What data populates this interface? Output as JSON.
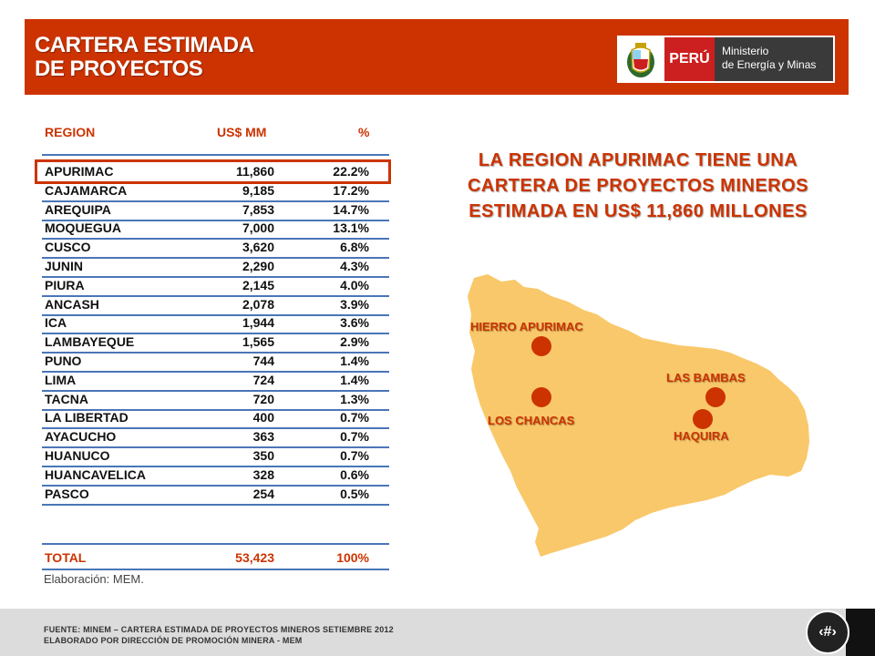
{
  "header": {
    "title_line1": "CARTERA ESTIMADA",
    "title_line2": "DE PROYECTOS",
    "logo": {
      "country": "PERÚ",
      "ministry_line1": "Ministerio",
      "ministry_line2": "de Energía y Minas"
    }
  },
  "table": {
    "col_region": "REGION",
    "col_value": "US$ MM",
    "col_pct": "%",
    "rows": [
      {
        "region": "APURIMAC",
        "value": "11,860",
        "pct": "22.2%"
      },
      {
        "region": "CAJAMARCA",
        "value": "9,185",
        "pct": "17.2%"
      },
      {
        "region": "AREQUIPA",
        "value": "7,853",
        "pct": "14.7%"
      },
      {
        "region": "MOQUEGUA",
        "value": "7,000",
        "pct": "13.1%"
      },
      {
        "region": "CUSCO",
        "value": "3,620",
        "pct": "6.8%"
      },
      {
        "region": "JUNIN",
        "value": "2,290",
        "pct": "4.3%"
      },
      {
        "region": "PIURA",
        "value": "2,145",
        "pct": "4.0%"
      },
      {
        "region": "ANCASH",
        "value": "2,078",
        "pct": "3.9%"
      },
      {
        "region": "ICA",
        "value": "1,944",
        "pct": "3.6%"
      },
      {
        "region": "LAMBAYEQUE",
        "value": "1,565",
        "pct": "2.9%"
      },
      {
        "region": "PUNO",
        "value": "744",
        "pct": "1.4%"
      },
      {
        "region": "LIMA",
        "value": "724",
        "pct": "1.4%"
      },
      {
        "region": "TACNA",
        "value": "720",
        "pct": "1.3%"
      },
      {
        "region": "LA LIBERTAD",
        "value": "400",
        "pct": "0.7%"
      },
      {
        "region": "AYACUCHO",
        "value": "363",
        "pct": "0.7%"
      },
      {
        "region": "HUANUCO",
        "value": "350",
        "pct": "0.7%"
      },
      {
        "region": "HUANCAVELICA",
        "value": "328",
        "pct": "0.6%"
      },
      {
        "region": "PASCO",
        "value": "254",
        "pct": "0.5%"
      }
    ],
    "total": {
      "label": "TOTAL",
      "value": "53,423",
      "pct": "100%"
    },
    "note": "Elaboración: MEM."
  },
  "headline": {
    "line1": "LA REGION APURIMAC TIENE UNA",
    "line2": "CARTERA DE PROYECTOS MINEROS",
    "line3": "ESTIMADA EN US$ 11,860 MILLONES"
  },
  "map": {
    "projects": [
      {
        "name": "HIERRO APURIMAC"
      },
      {
        "name": "LAS BAMBAS"
      },
      {
        "name": "LOS CHANCAS"
      },
      {
        "name": "HAQUIRA"
      }
    ],
    "colors": {
      "region_fill": "#f9c86a",
      "marker": "#cc3300",
      "label": "#cc3300"
    }
  },
  "footer": {
    "line1": "FUENTE: MINEM – CARTERA ESTIMADA DE PROYECTOS MINEROS SETIEMBRE 2012",
    "line2": "ELABORADO POR DIRECCIÓN DE PROMOCIÓN MINERA - MEM",
    "page_number": "‹#›"
  },
  "colors": {
    "accent": "#cc3300",
    "table_line": "#4a76b7"
  }
}
